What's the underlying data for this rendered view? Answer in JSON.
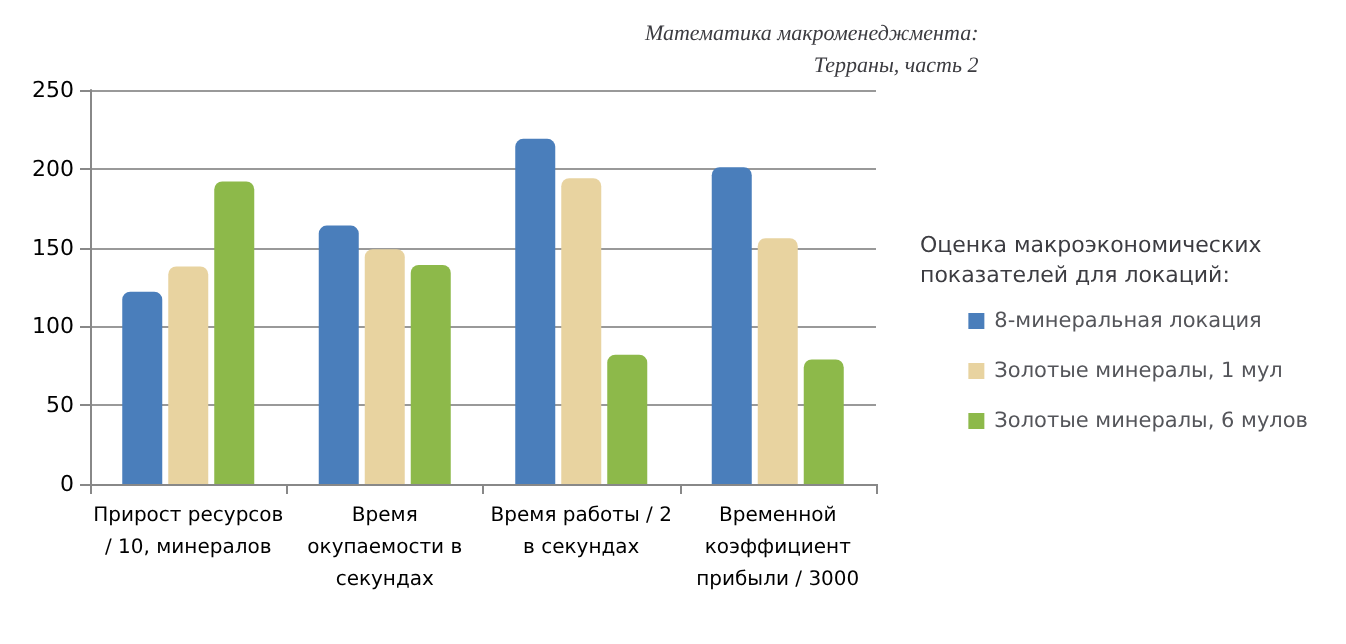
{
  "chart_data": {
    "type": "bar",
    "title": "Математика макроменеджмента: Терраны, часть 2",
    "legend_title": "Оценка макроэкономических показателей для локаций:",
    "categories": [
      "Прирост ресурсов / 10, минералов",
      "Время окупаемости в секундах",
      "Время работы / 2 в секундах",
      "Временной коэффициент прибыли / 3000"
    ],
    "series": [
      {
        "name": "8-минеральная локация",
        "color": "#4a7ebb",
        "values": [
          122,
          164,
          219,
          201
        ]
      },
      {
        "name": "Золотые минералы, 1 мул",
        "color": "#e8d3a0",
        "values": [
          138,
          149,
          194,
          156
        ]
      },
      {
        "name": "Золотые минералы, 6 мулов",
        "color": "#8db94a",
        "values": [
          192,
          139,
          82,
          79
        ]
      }
    ],
    "ylim": [
      0,
      250
    ],
    "yticks": [
      0,
      50,
      100,
      150,
      200,
      250
    ],
    "grid": "y",
    "legend": "right"
  }
}
